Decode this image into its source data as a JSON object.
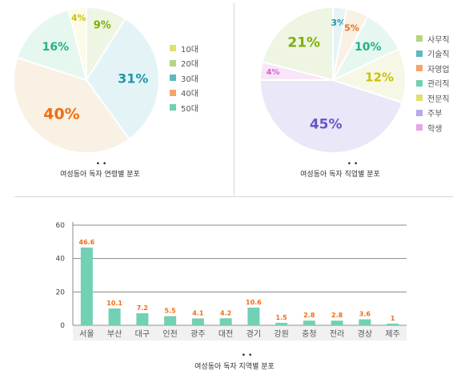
{
  "chart_data": [
    {
      "type": "pie",
      "title": "여성동아 독자 연령별 분포",
      "categories": [
        "10대",
        "20대",
        "30대",
        "40대",
        "50대"
      ],
      "values": [
        4,
        9,
        31,
        40,
        16
      ],
      "labels": [
        "4%",
        "9%",
        "31%",
        "40%",
        "16%"
      ],
      "colors": [
        "#e0df70",
        "#b3d67f",
        "#5fb8c2",
        "#f7a46b",
        "#6fd1b3"
      ],
      "fill_colors": [
        "#fbfbe7",
        "#eef5e3",
        "#e4f4f6",
        "#f8f1e4",
        "#e6f7f0"
      ],
      "label_colors": [
        "#c9c300",
        "#7fb000",
        "#1f97a8",
        "#ef6d12",
        "#21b285"
      ],
      "legend_position": "right"
    },
    {
      "type": "pie",
      "title": "여성동아 독자 직업별 분포",
      "categories": [
        "사무직",
        "기술직",
        "자영업",
        "관리직",
        "전문직",
        "주부",
        "학생"
      ],
      "values": [
        21,
        3,
        5,
        10,
        12,
        45,
        4
      ],
      "labels": [
        "21%",
        "3%",
        "5%",
        "10%",
        "12%",
        "45%",
        "4%"
      ],
      "colors": [
        "#b3d67f",
        "#5fb8c2",
        "#f7a46b",
        "#6fd1b3",
        "#e0df70",
        "#b7a9ea",
        "#e8a6e6"
      ],
      "fill_colors": [
        "#eef5e3",
        "#e4f4f6",
        "#f8f1e4",
        "#e6f7f0",
        "#f7f7e6",
        "#e9e7f8",
        "#f8e6f6"
      ],
      "label_colors": [
        "#7fb000",
        "#1f97a8",
        "#ef6d12",
        "#21b285",
        "#c9c300",
        "#6a55c6",
        "#d65fd2"
      ],
      "legend_position": "right"
    },
    {
      "type": "bar",
      "title": "여성동아 독자 지역별 분포",
      "categories": [
        "서울",
        "부산",
        "대구",
        "인천",
        "광주",
        "대전",
        "경기",
        "강원",
        "충청",
        "전라",
        "경상",
        "제주"
      ],
      "values": [
        46.6,
        10.1,
        7.2,
        5.5,
        4.1,
        4.2,
        10.6,
        1.5,
        2.8,
        2.8,
        3.6,
        1
      ],
      "value_labels": [
        "46.6",
        "10.1",
        "7.2",
        "5.5",
        "4.1",
        "4.2",
        "10.6",
        "1.5",
        "2.8",
        "2.8",
        "3.6",
        "1"
      ],
      "y_ticks": [
        "0",
        "20",
        "40",
        "60"
      ],
      "ylim": [
        0,
        60
      ],
      "bar_color": "#72d0b4",
      "value_label_color": "#f26b12",
      "grid": true
    }
  ]
}
